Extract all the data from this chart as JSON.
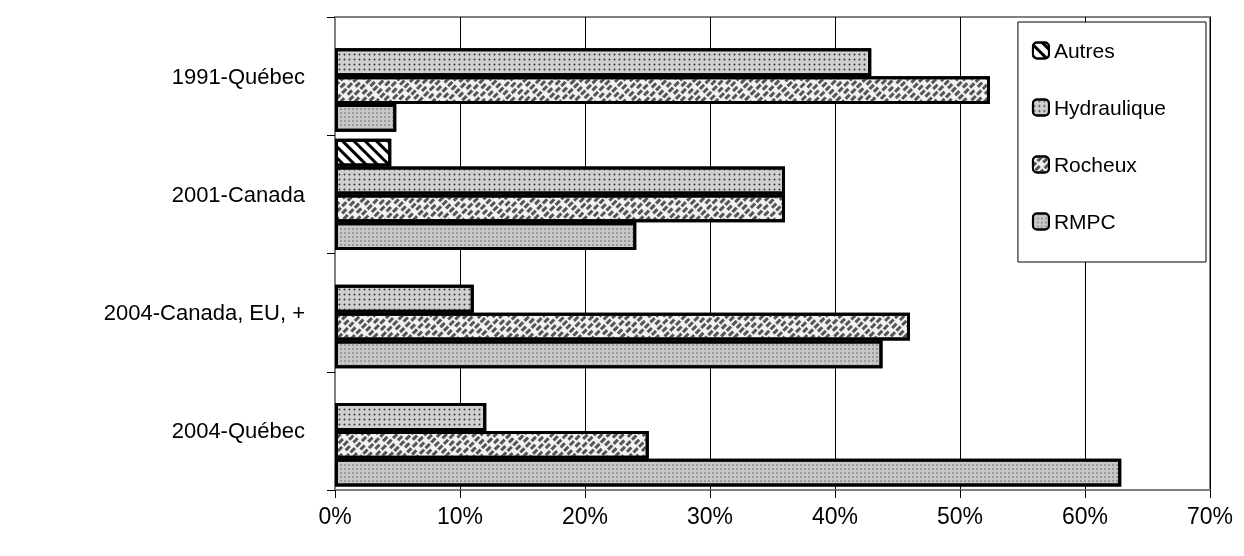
{
  "chart_data": {
    "type": "bar",
    "orientation": "horizontal",
    "categories": [
      "1991-Québec",
      "2001-Canada",
      "2004-Canada, EU, +",
      "2004-Québec"
    ],
    "series": [
      {
        "name": "Autres",
        "color": "#ffffff",
        "values": [
          null,
          4.5,
          null,
          null
        ]
      },
      {
        "name": "Hydraulique",
        "color": "#d0d0d0",
        "values": [
          42.9,
          36.0,
          11.1,
          12.1
        ]
      },
      {
        "name": "Rocheux",
        "color": "#f2f2f2",
        "values": [
          52.4,
          36.0,
          46.0,
          25.1
        ]
      },
      {
        "name": "RMPC",
        "color": "#c8c8c8",
        "values": [
          4.9,
          24.1,
          43.8,
          62.9
        ]
      }
    ],
    "xlim": [
      0,
      70
    ],
    "xticks": [
      {
        "value": 0,
        "label": "0%"
      },
      {
        "value": 10,
        "label": "10%"
      },
      {
        "value": 20,
        "label": "20%"
      },
      {
        "value": 30,
        "label": "30%"
      },
      {
        "value": 40,
        "label": "40%"
      },
      {
        "value": 50,
        "label": "50%"
      },
      {
        "value": 60,
        "label": "60%"
      },
      {
        "value": 70,
        "label": "70%"
      }
    ],
    "grid": "x",
    "legend": "top right"
  }
}
